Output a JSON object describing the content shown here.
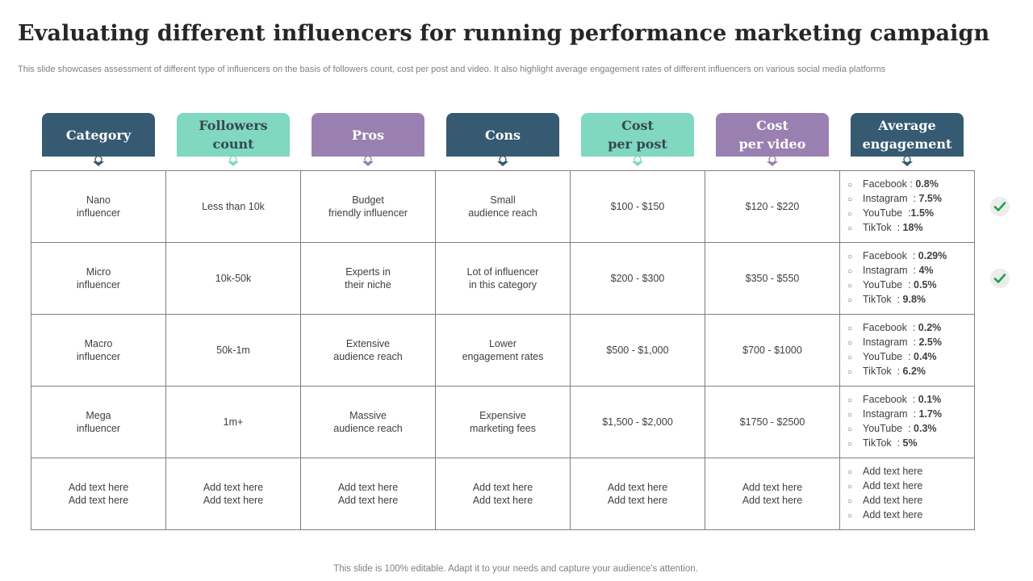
{
  "title": "Evaluating different influencers for running performance marketing campaign",
  "subtitle": "This slide showcases assessment of different type  of influencers on the basis of followers count, cost per post and video. It also highlight average engagement rates of different influencers on various social media platforms",
  "footer": "This slide is 100% editable. Adapt it to your needs and capture your audience's attention.",
  "colors": {
    "blue": "#365a72",
    "mint": "#7fd8bf",
    "purple": "#9a80b0",
    "check": "#1aa34a"
  },
  "headers": [
    {
      "label": "Category",
      "style": "blue"
    },
    {
      "label": "Followers\ncount",
      "style": "mint"
    },
    {
      "label": "Pros",
      "style": "purple"
    },
    {
      "label": "Cons",
      "style": "blue"
    },
    {
      "label": "Cost\nper post",
      "style": "mint"
    },
    {
      "label": "Cost\nper video",
      "style": "purple"
    },
    {
      "label": "Average\nengagement",
      "style": "blue"
    }
  ],
  "rows": [
    {
      "category": "Nano\ninfluencer",
      "followers": "Less than 10k",
      "pros": "Budget\nfriendly influencer",
      "cons": "Small\naudience reach",
      "cost_post": "$100 - $150",
      "cost_video": "$120 - $220",
      "engagement": [
        {
          "label": "Facebook : ",
          "value": "0.8%"
        },
        {
          "label": "Instagram  : ",
          "value": "7.5%"
        },
        {
          "label": "YouTube  :",
          "value": "1.5%"
        },
        {
          "label": "TikTok  : ",
          "value": "18%"
        }
      ]
    },
    {
      "category": "Micro\ninfluencer",
      "followers": "10k-50k",
      "pros": "Experts in\ntheir niche",
      "cons": "Lot of influencer\nin this category",
      "cost_post": "$200 - $300",
      "cost_video": "$350 - $550",
      "engagement": [
        {
          "label": "Facebook  : ",
          "value": "0.29%"
        },
        {
          "label": "Instagram  : ",
          "value": "4%"
        },
        {
          "label": "YouTube  : ",
          "value": "0.5%"
        },
        {
          "label": "TikTok  : ",
          "value": "9.8%"
        }
      ]
    },
    {
      "category": "Macro\ninfluencer",
      "followers": "50k-1m",
      "pros": "Extensive\naudience reach",
      "cons": "Lower\nengagement  rates",
      "cost_post": "$500 - $1,000",
      "cost_video": "$700 - $1000",
      "engagement": [
        {
          "label": "Facebook  : ",
          "value": "0.2%"
        },
        {
          "label": "Instagram  : ",
          "value": "2.5%"
        },
        {
          "label": "YouTube  : ",
          "value": "0.4%"
        },
        {
          "label": "TikTok  : ",
          "value": "6.2%"
        }
      ]
    },
    {
      "category": "Mega\ninfluencer",
      "followers": "1m+",
      "pros": "Massive\naudience reach",
      "cons": "Expensive\nmarketing fees",
      "cost_post": "$1,500 - $2,000",
      "cost_video": "$1750 - $2500",
      "engagement": [
        {
          "label": "Facebook  : ",
          "value": "0.1%"
        },
        {
          "label": "Instagram  : ",
          "value": "1.7%"
        },
        {
          "label": "YouTube  : ",
          "value": "0.3%"
        },
        {
          "label": "TikTok  : ",
          "value": "5%"
        }
      ]
    },
    {
      "category": "Add text here\nAdd text here",
      "followers": "Add text here\nAdd text here",
      "pros": "Add text here\nAdd text here",
      "cons": "Add text here\nAdd text here",
      "cost_post": "Add text here\nAdd text here",
      "cost_video": "Add text here\nAdd text here",
      "engagement": [
        {
          "label": "Add text here",
          "value": ""
        },
        {
          "label": "Add text here",
          "value": ""
        },
        {
          "label": "Add text here",
          "value": ""
        },
        {
          "label": "Add text here",
          "value": ""
        }
      ]
    }
  ],
  "checkmarks": [
    {
      "row": "Nano\ninfluencer",
      "icon": "check-icon"
    },
    {
      "row": "Micro\ninfluencer",
      "icon": "check-icon"
    }
  ]
}
